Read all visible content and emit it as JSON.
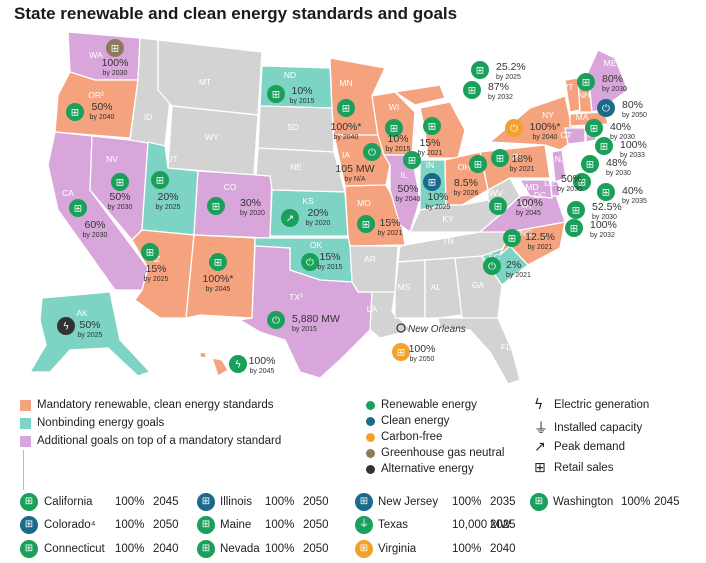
{
  "title": "State renewable and clean energy standards and goals",
  "colors": {
    "mandatory": "#f5a27e",
    "nonbinding": "#7dd3c4",
    "additional": "#d9a6dc",
    "none": "#d3d3d3",
    "renewable": "#1aa05a",
    "clean": "#1a6a8c",
    "carbonfree": "#f3a12b",
    "ghg": "#8d7a5c",
    "alternative": "#333333",
    "ak": "#7dd3c4"
  },
  "state_labels": {
    "WA": "WA",
    "OR": "OR²",
    "CA": "CA",
    "NV": "NV",
    "ID": "ID",
    "MT": "MT",
    "WY": "WY",
    "UT": "UT",
    "AZ": "AZ",
    "CO": "CO",
    "NM": "NM",
    "ND": "ND",
    "SD": "SD",
    "NE": "NE",
    "KS": "KS",
    "OK": "OK",
    "TX": "TX³",
    "MN": "MN",
    "IA": "IA",
    "MO": "MO",
    "AR": "AR",
    "LA": "LA",
    "WI": "WI",
    "IL": "IL",
    "MI": "MI",
    "IN": "IN",
    "OH": "OH",
    "KY": "KY",
    "TN": "TN",
    "MS": "MS",
    "AL": "AL",
    "GA": "GA",
    "FL": "FL",
    "SC": "SC",
    "NC": "NC",
    "VA": "VA",
    "WV": "WV",
    "PA": "PA",
    "NY": "NY",
    "ME": "ME",
    "VT": "VT",
    "NH": "NH",
    "MA": "MA",
    "CT": "CT",
    "RI": "RI",
    "NJ": "NJ",
    "DE": "DE",
    "MD": "MD",
    "DC": "DC",
    "AK": "AK",
    "HI": "HI⁶"
  },
  "goals": {
    "WA": {
      "value": "100%",
      "by": "by 2030"
    },
    "OR": {
      "value": "50%",
      "by": "by 2040"
    },
    "NV": {
      "value": "50%",
      "by": "by 2030"
    },
    "CA": {
      "value": "60%",
      "by": "by 2030"
    },
    "UT": {
      "value": "20%",
      "by": "by 2025"
    },
    "AZ": {
      "value": "15%",
      "by": "by 2025"
    },
    "CO": {
      "value": "30%",
      "by": "by 2020"
    },
    "NM": {
      "value": "100%*",
      "by": "by 2045"
    },
    "ND": {
      "value": "10%",
      "by": "by 2015"
    },
    "KS": {
      "value": "20%",
      "by": "by 2020"
    },
    "OK": {
      "value": "15%",
      "by": "by 2015"
    },
    "TX": {
      "value": "5,880 MW",
      "by": "by 2015"
    },
    "MN": {
      "value": "100%*",
      "by": "by 2040"
    },
    "IA": {
      "value": "105 MW",
      "by": "by N/A"
    },
    "MO": {
      "value": "15%",
      "by": "by 2021"
    },
    "WI": {
      "value": "10%",
      "by": "by 2015"
    },
    "IL": {
      "value": "50%",
      "by": "by 2040"
    },
    "IN": {
      "value": "10%",
      "by": "by 2025"
    },
    "MI": {
      "value": "15%",
      "by": "by 2021"
    },
    "OH": {
      "value": "8.5%",
      "by": "by 2026"
    },
    "PA": {
      "value": "18%",
      "by": "by 2021"
    },
    "NY": {
      "value": "100%*",
      "by": "by 2040"
    },
    "WV_VA": {
      "value": "100%",
      "by": "by 2045"
    },
    "NC": {
      "value": "12.5%",
      "by": "by 2021"
    },
    "SC": {
      "value": "2%",
      "by": "by 2021"
    },
    "NO": {
      "value": "100%",
      "by": "by 2050"
    },
    "AK": {
      "value": "50%",
      "by": "by 2025"
    },
    "HI": {
      "value": "100%",
      "by": "by 2045"
    },
    "VT": {
      "value": "25.2%",
      "by": "by 2025"
    },
    "VT2": {
      "value": "87%",
      "by": "by 2032"
    },
    "ME": {
      "value": "80%",
      "by": "by 2030"
    },
    "NH": {
      "value": "80%",
      "by": "by 2050"
    },
    "MA": {
      "value": "40%",
      "by": "by 2030"
    },
    "RI": {
      "value": "100%",
      "by": "by 2033"
    },
    "CT": {
      "value": "48%",
      "by": "by 2030"
    },
    "NJ": {
      "value": "50%",
      "by": "by 2030"
    },
    "DE": {
      "value": "40%",
      "by": "by 2035"
    },
    "MD": {
      "value": "52.5%",
      "by": "by 2030"
    },
    "DC": {
      "value": "100%",
      "by": "by 2032"
    }
  },
  "new_orleans": "New Orleans",
  "legend_colors": [
    {
      "label": "Mandatory renewable, clean energy standards",
      "color": "#f5a27e"
    },
    {
      "label": "Nonbinding energy goals",
      "color": "#7dd3c4"
    },
    {
      "label": "Additional goals on top of a mandatory standard",
      "color": "#d9a6dc"
    }
  ],
  "legend_dots": [
    {
      "label": "Renewable energy",
      "color": "#1aa05a"
    },
    {
      "label": "Clean energy",
      "color": "#1a6a8c"
    },
    {
      "label": "Carbon-free",
      "color": "#f3a12b"
    },
    {
      "label": "Greenhouse gas neutral",
      "color": "#8d7a5c"
    },
    {
      "label": "Alternative energy",
      "color": "#333333"
    }
  ],
  "legend_icons": [
    {
      "label": "Electric generation",
      "icon": "lightning-icon"
    },
    {
      "label": "Installed capacity",
      "icon": "plug-icon"
    },
    {
      "label": "Peak demand",
      "icon": "trend-arrow-icon"
    },
    {
      "label": "Retail sales",
      "icon": "cart-icon"
    }
  ],
  "table": [
    {
      "state": "California",
      "pct": "100%",
      "year": "2045",
      "color": "#1aa05a",
      "icon": "cart-icon"
    },
    {
      "state": "Illinois",
      "pct": "100%",
      "year": "2050",
      "color": "#1a6a8c",
      "icon": "cart-icon"
    },
    {
      "state": "New Jersey",
      "pct": "100%",
      "year": "2035",
      "color": "#1a6a8c",
      "icon": "cart-icon"
    },
    {
      "state": "Washington",
      "pct": "100%",
      "year": "2045",
      "color": "#1aa05a",
      "icon": "cart-icon"
    },
    {
      "state": "Colorado⁴",
      "pct": "100%",
      "year": "2050",
      "color": "#1a6a8c",
      "icon": "cart-icon"
    },
    {
      "state": "Maine",
      "pct": "100%",
      "year": "2050",
      "color": "#1aa05a",
      "icon": "cart-icon"
    },
    {
      "state": "Texas",
      "pct": "10,000 MW",
      "year": "2025",
      "color": "#1aa05a",
      "icon": "plug-icon"
    },
    {
      "state": "Connecticut",
      "pct": "100%",
      "year": "2040",
      "color": "#1aa05a",
      "icon": "cart-icon"
    },
    {
      "state": "Nevada",
      "pct": "100%",
      "year": "2050",
      "color": "#1aa05a",
      "icon": "cart-icon"
    },
    {
      "state": "Virginia",
      "pct": "100%",
      "year": "2040",
      "color": "#f3a12b",
      "icon": "cart-icon"
    }
  ]
}
